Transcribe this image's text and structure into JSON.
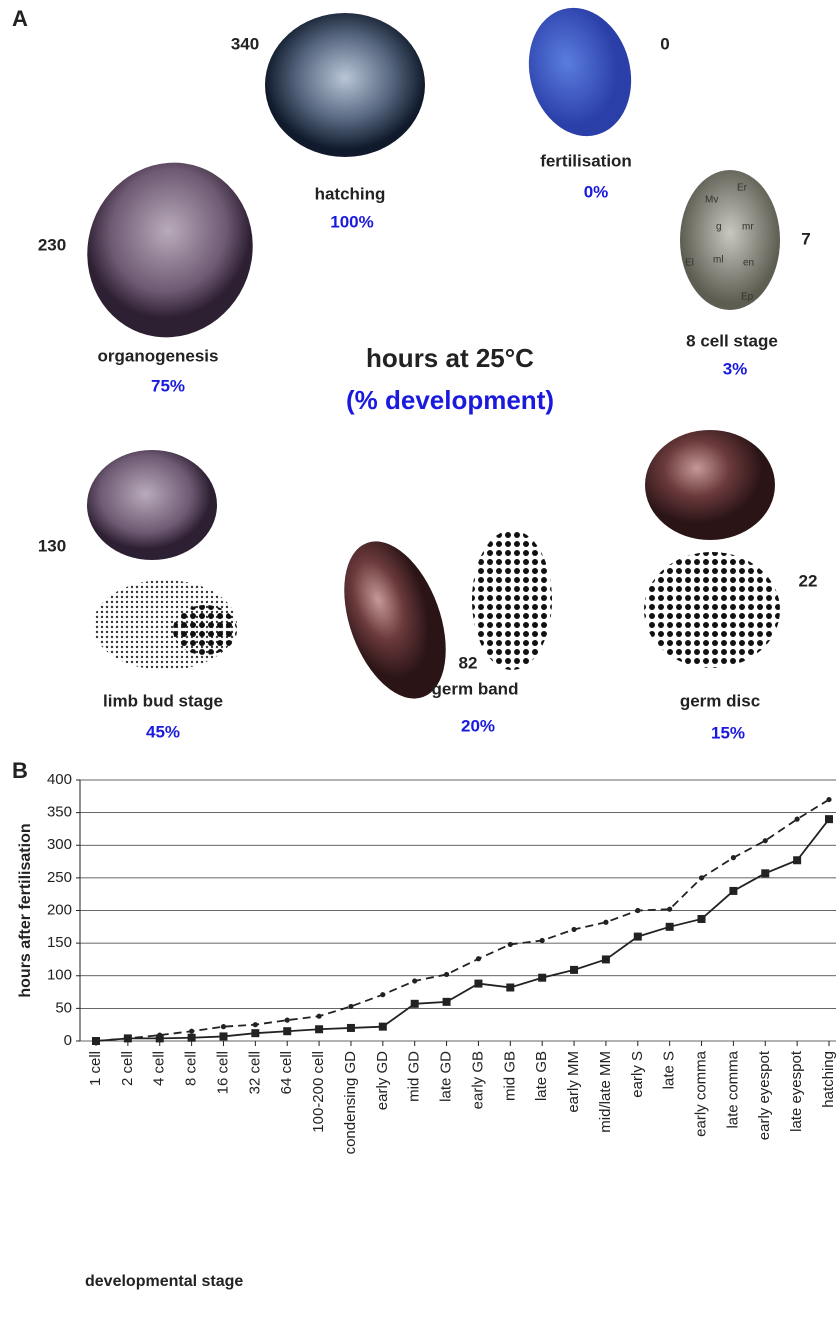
{
  "panel_a": {
    "label": "A",
    "center_title": "hours at 25°C",
    "center_subtitle": "(% development)",
    "stages": [
      {
        "hours": 340,
        "name": "hatching",
        "percent": "100%"
      },
      {
        "hours": 0,
        "name": "fertilisation",
        "percent": "0%"
      },
      {
        "hours": 7,
        "name": "8 cell stage",
        "percent": "3%"
      },
      {
        "hours": 230,
        "name": "organogenesis",
        "percent": "75%"
      },
      {
        "hours": 130,
        "name": "limb bud stage",
        "percent": "45%"
      },
      {
        "hours": 82,
        "name": "germ band",
        "percent": "20%"
      },
      {
        "hours": 22,
        "name": "germ disc",
        "percent": "15%"
      }
    ],
    "cell_labels": [
      "Mv",
      "Er",
      "g",
      "mr",
      "El",
      "ml",
      "en",
      "Ep"
    ]
  },
  "chart_data": {
    "type": "line",
    "panel_label": "B",
    "y_label": "hours after fertilisation",
    "x_label": "developmental stage",
    "categories": [
      "1 cell",
      "2 cell",
      "4 cell",
      "8 cell",
      "16 cell",
      "32 cell",
      "64 cell",
      "100-200 cell",
      "condensing GD",
      "early GD",
      "mid GD",
      "late GD",
      "early GB",
      "mid GB",
      "late GB",
      "early MM",
      "mid/late MM",
      "early S",
      "late S",
      "early comma",
      "late comma",
      "early eyespot",
      "late eyespot",
      "hatching"
    ],
    "series": [
      {
        "color": "#222222",
        "line_style": "solid",
        "marker": "square",
        "values": [
          0,
          4,
          4,
          5,
          7,
          12,
          15,
          18,
          20,
          22,
          57,
          60,
          88,
          82,
          97,
          109,
          125,
          160,
          175,
          187,
          230,
          257,
          277,
          340
        ]
      },
      {
        "color": "#222222",
        "line_style": "dashed",
        "marker": "circle",
        "values": [
          0,
          4,
          9,
          15,
          22,
          25,
          32,
          38,
          53,
          71,
          92,
          102,
          126,
          148,
          154,
          171,
          182,
          200,
          202,
          250,
          281,
          307,
          340,
          370
        ]
      }
    ],
    "ylim": [
      0,
      400
    ],
    "yticks": [
      0,
      50,
      100,
      150,
      200,
      250,
      300,
      350,
      400
    ],
    "grid": true
  }
}
